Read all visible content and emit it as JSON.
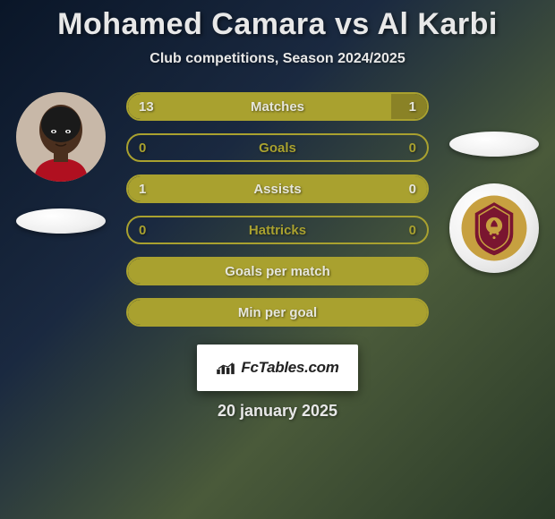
{
  "title": "Mohamed Camara vs Al Karbi",
  "subtitle": "Club competitions, Season 2024/2025",
  "date": "20 january 2025",
  "brand": "FcTables.com",
  "colors": {
    "accent": "#a9a12f",
    "accent_dark": "#8a8226",
    "text": "#e6e6db",
    "empty_row_border": "#a9a12f"
  },
  "left": {
    "photo_bg": "#3a2a20"
  },
  "right": {
    "club_badge_primary": "#7a1530",
    "club_badge_secondary": "#c7a040"
  },
  "stats": [
    {
      "label": "Matches",
      "left_val": "13",
      "right_val": "1",
      "left_pct": 88,
      "right_pct": 12,
      "left_color": "#a9a12f",
      "right_color": "#8a8226",
      "border_color": "#a9a12f",
      "text_color": "#e6e6db"
    },
    {
      "label": "Goals",
      "left_val": "0",
      "right_val": "0",
      "left_pct": 0,
      "right_pct": 0,
      "left_color": "#a9a12f",
      "right_color": "#8a8226",
      "border_color": "#a9a12f",
      "text_color": "#a9a12f"
    },
    {
      "label": "Assists",
      "left_val": "1",
      "right_val": "0",
      "left_pct": 100,
      "right_pct": 0,
      "left_color": "#a9a12f",
      "right_color": "#8a8226",
      "border_color": "#a9a12f",
      "text_color": "#e6e6db"
    },
    {
      "label": "Hattricks",
      "left_val": "0",
      "right_val": "0",
      "left_pct": 0,
      "right_pct": 0,
      "left_color": "#a9a12f",
      "right_color": "#8a8226",
      "border_color": "#a9a12f",
      "text_color": "#a9a12f"
    },
    {
      "label": "Goals per match",
      "left_val": "",
      "right_val": "",
      "left_pct": 100,
      "right_pct": 0,
      "left_color": "#a9a12f",
      "right_color": "#8a8226",
      "border_color": "#a9a12f",
      "text_color": "#e6e6db"
    },
    {
      "label": "Min per goal",
      "left_val": "",
      "right_val": "",
      "left_pct": 100,
      "right_pct": 0,
      "left_color": "#a9a12f",
      "right_color": "#8a8226",
      "border_color": "#a9a12f",
      "text_color": "#e6e6db"
    }
  ]
}
